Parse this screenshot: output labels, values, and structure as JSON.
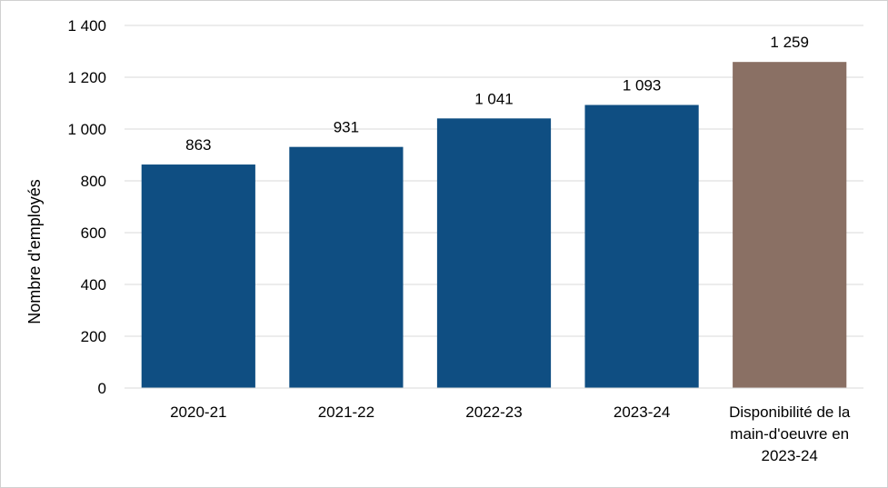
{
  "chart_data": {
    "type": "bar",
    "title": "",
    "xlabel": "",
    "ylabel": "Nombre d'employés",
    "ylim": [
      0,
      1400
    ],
    "yticks": [
      0,
      200,
      400,
      600,
      800,
      1000,
      1200,
      1400
    ],
    "ytick_labels": [
      "0",
      "200",
      "400",
      "600",
      "800",
      "1 000",
      "1 200",
      "1 400"
    ],
    "grid": true,
    "legend": "none",
    "categories": [
      [
        "2020-21"
      ],
      [
        "2021-22"
      ],
      [
        "2022-23"
      ],
      [
        "2023-24"
      ],
      [
        "Disponibilité de la",
        "main-d'oeuvre en",
        "2023-24"
      ]
    ],
    "values": [
      863,
      931,
      1041,
      1093,
      1259
    ],
    "data_labels": [
      "863",
      "931",
      "1 041",
      "1 093",
      "1 259"
    ],
    "colors": [
      "#0f4e82",
      "#0f4e82",
      "#0f4e82",
      "#0f4e82",
      "#8a7064"
    ]
  }
}
